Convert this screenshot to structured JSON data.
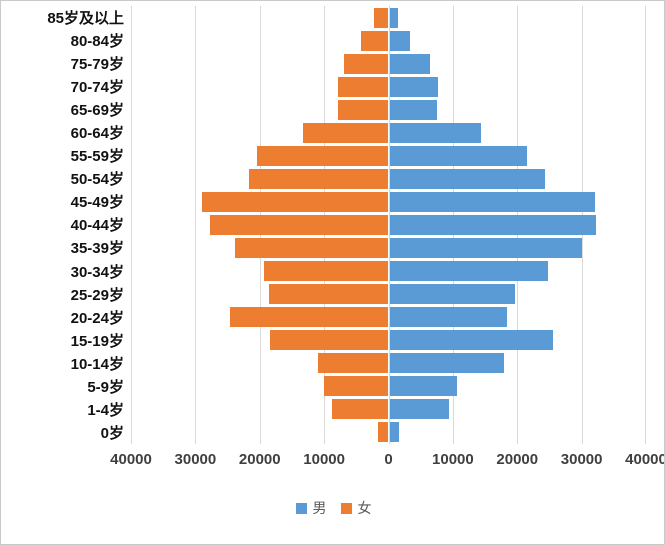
{
  "chart": {
    "colors": {
      "male": "#5B9BD5",
      "female": "#ED7D31",
      "gridline": "#D9D9D9",
      "axis_text": "#3F3F3F",
      "category_text": "#111111",
      "legend_text": "#595959",
      "border": "#C9C9C9"
    }
  },
  "chart_data": {
    "type": "bar",
    "subtype": "population-pyramid",
    "orientation": "horizontal",
    "title": "",
    "xlabel": "",
    "ylabel": "",
    "grid": true,
    "legend_position": "bottom",
    "axis_max": 40000,
    "x_ticks": [
      "40000",
      "30000",
      "20000",
      "10000",
      "0",
      "10000",
      "20000",
      "30000",
      "40000"
    ],
    "categories": [
      "85岁及以上",
      "80-84岁",
      "75-79岁",
      "70-74岁",
      "65-69岁",
      "60-64岁",
      "55-59岁",
      "50-54岁",
      "45-49岁",
      "40-44岁",
      "35-39岁",
      "30-34岁",
      "25-29岁",
      "20-24岁",
      "15-19岁",
      "10-14岁",
      "5-9岁",
      "1-4岁",
      "0岁"
    ],
    "series": [
      {
        "name": "男",
        "side": "right",
        "color": "#5B9BD5",
        "values": [
          1500,
          3400,
          6500,
          7700,
          7600,
          14300,
          21500,
          24300,
          32100,
          32300,
          30000,
          24800,
          19600,
          18400,
          25600,
          18000,
          10600,
          9400,
          1700
        ]
      },
      {
        "name": "女",
        "side": "left",
        "color": "#ED7D31",
        "values": [
          2200,
          4300,
          6900,
          7800,
          7800,
          13300,
          20400,
          21600,
          29000,
          27700,
          23800,
          19400,
          18500,
          24700,
          18400,
          11000,
          10000,
          8800,
          1600
        ]
      }
    ]
  }
}
